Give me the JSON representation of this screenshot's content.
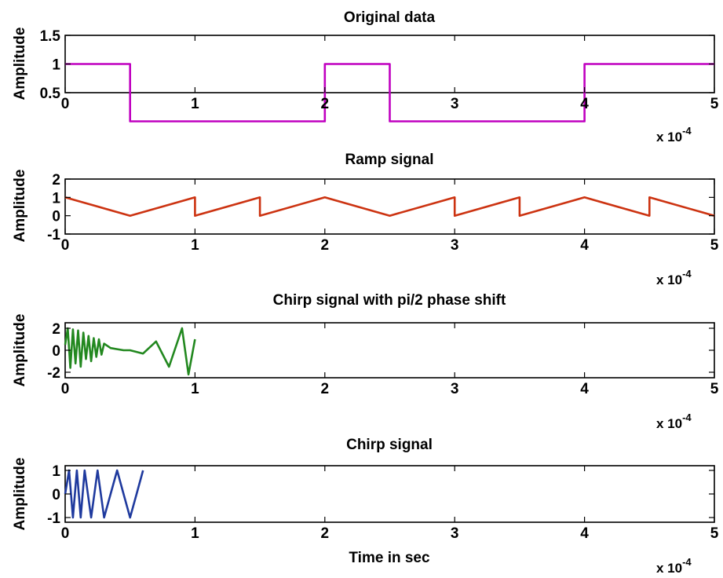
{
  "figure": {
    "shared_x": {
      "ticks": [
        0,
        1,
        2,
        3,
        4,
        5
      ],
      "multiplier_label": "x 10",
      "multiplier_exponent": "-4"
    },
    "colors": {
      "original": "#c000c0",
      "ramp": "#cc3311",
      "chirp_phase": "#22881f",
      "chirp": "#1f3a9e",
      "axes": "#000000",
      "background": "#ffffff"
    }
  },
  "chart_data": [
    {
      "type": "line",
      "title": "Original data",
      "xlabel": "",
      "ylabel": "Amplitude",
      "xlim": [
        0,
        5
      ],
      "x_multiplier": "x 10^-4",
      "ylim": [
        0.5,
        1.5
      ],
      "yticks": [
        "0.5",
        "1",
        "1.5"
      ],
      "xticks": [
        "0",
        "1",
        "2",
        "3",
        "4",
        "5"
      ],
      "series": [
        {
          "x": [
            0,
            0.5,
            0.5,
            2,
            2,
            2.5,
            2.5,
            4,
            4,
            5
          ],
          "y": [
            1,
            1,
            0,
            0,
            1,
            1,
            0,
            0,
            1,
            1
          ]
        }
      ]
    },
    {
      "type": "line",
      "title": "Ramp signal",
      "xlabel": "",
      "ylabel": "Amplitude",
      "xlim": [
        0,
        5
      ],
      "x_multiplier": "x 10^-4",
      "ylim": [
        -1,
        2
      ],
      "yticks": [
        "-1",
        "0",
        "1",
        "2"
      ],
      "xticks": [
        "0",
        "1",
        "2",
        "3",
        "4",
        "5"
      ],
      "series": [
        {
          "x": [
            0,
            0.5,
            1,
            1,
            1.5,
            1.5,
            2,
            2.5,
            3,
            3,
            3.5,
            3.5,
            4,
            4.5,
            4.5,
            5
          ],
          "y": [
            1,
            0,
            1,
            0,
            1,
            0,
            1,
            0,
            1,
            0,
            1,
            0,
            1,
            0,
            1,
            0
          ]
        }
      ]
    },
    {
      "type": "line",
      "title": "Chirp signal with pi/2  phase shift",
      "xlabel": "",
      "ylabel": "Amplitude",
      "xlim": [
        0,
        5
      ],
      "x_multiplier": "x 10^-4",
      "ylim": [
        -2.5,
        2.5
      ],
      "yticks": [
        "-2",
        "0",
        "2"
      ],
      "xticks": [
        "0",
        "1",
        "2",
        "3",
        "4",
        "5"
      ],
      "series": [
        {
          "x": [
            0,
            0.02,
            0.04,
            0.06,
            0.08,
            0.1,
            0.12,
            0.14,
            0.16,
            0.18,
            0.2,
            0.22,
            0.24,
            0.26,
            0.28,
            0.3,
            0.35,
            0.4,
            0.45,
            0.5,
            0.6,
            0.7,
            0.8,
            0.9,
            0.95,
            1.0
          ],
          "y": [
            0.5,
            2.0,
            -1.6,
            1.9,
            -1.2,
            1.8,
            -1.5,
            1.6,
            -0.8,
            1.3,
            -1.0,
            1.1,
            -0.6,
            1.0,
            -0.4,
            0.6,
            0.2,
            0.1,
            0.0,
            0.0,
            -0.3,
            0.8,
            -1.5,
            2.0,
            -2.2,
            1.0
          ]
        }
      ]
    },
    {
      "type": "line",
      "title": "Chirp signal",
      "xlabel": "Time in sec",
      "ylabel": "Amplitude",
      "xlim": [
        0,
        5
      ],
      "x_multiplier": "x 10^-4",
      "ylim": [
        -1.2,
        1.2
      ],
      "yticks": [
        "-1",
        "0",
        "1"
      ],
      "xticks": [
        "0",
        "1",
        "2",
        "3",
        "4",
        "5"
      ],
      "series": [
        {
          "x": [
            0,
            0.03,
            0.06,
            0.09,
            0.12,
            0.15,
            0.2,
            0.25,
            0.3,
            0.35,
            0.4,
            0.45,
            0.5,
            0.55,
            0.6
          ],
          "y": [
            0,
            1,
            -1,
            1,
            -1,
            1,
            -1,
            1,
            -1,
            0,
            1,
            0,
            -1,
            0,
            1
          ]
        }
      ]
    }
  ]
}
